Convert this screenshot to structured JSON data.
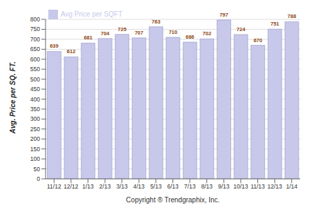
{
  "chart_data": {
    "type": "bar",
    "categories": [
      "11/12",
      "12/12",
      "1/13",
      "2/13",
      "3/13",
      "4/13",
      "5/13",
      "6/13",
      "7/13",
      "8/13",
      "9/13",
      "10/13",
      "11/13",
      "12/13",
      "1/14"
    ],
    "series": [
      {
        "name": "Avg Price per SQFT",
        "color": "#c8c8eb",
        "values": [
          639,
          612,
          681,
          704,
          725,
          707,
          763,
          710,
          686,
          702,
          797,
          724,
          670,
          751,
          788
        ]
      }
    ],
    "xlabel": "Copyright ® Trendgraphix, Inc.",
    "ylabel": "Avg. Price per SQ. FT.",
    "ylim": [
      0,
      800
    ],
    "yticks": [
      0,
      50,
      100,
      150,
      200,
      250,
      300,
      350,
      400,
      450,
      500,
      550,
      600,
      650,
      700,
      750,
      800
    ],
    "grid": true,
    "legend": "upper left",
    "data_labels": true
  }
}
